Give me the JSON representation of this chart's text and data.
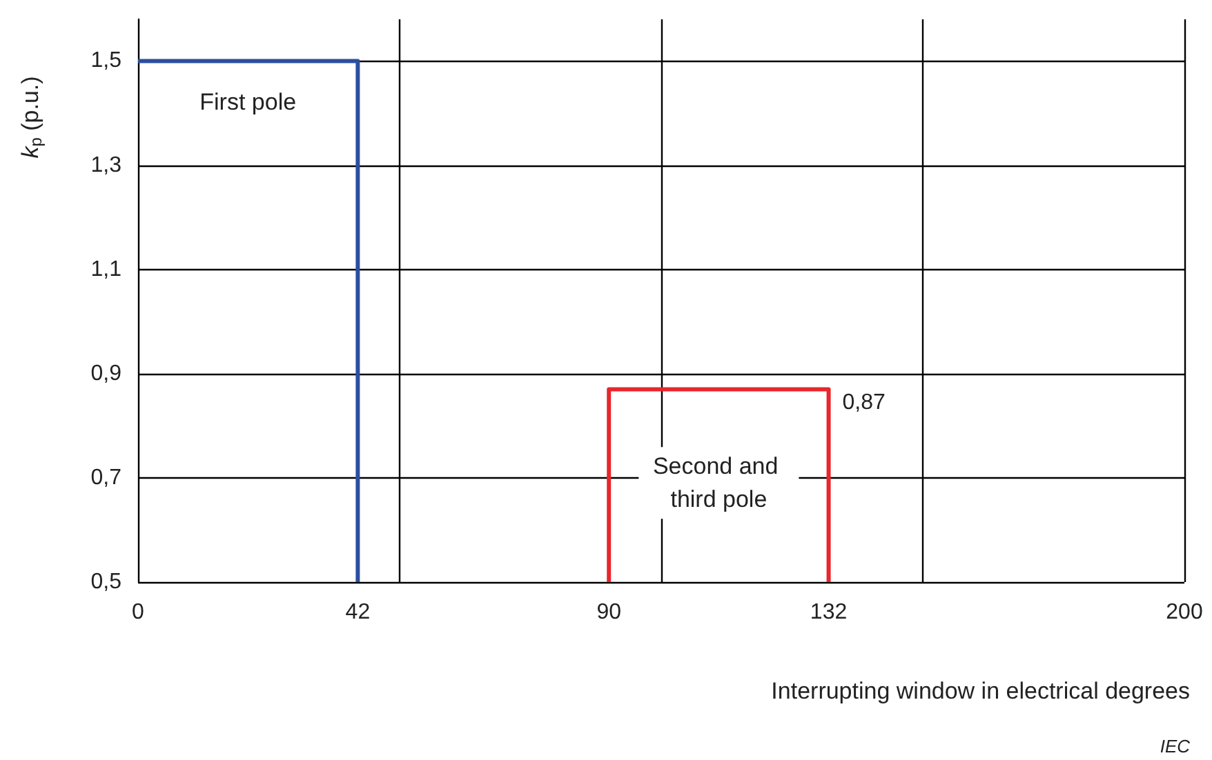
{
  "chart_data": {
    "type": "line",
    "xlabel": "Interrupting window in electrical degrees",
    "ylabel": "k$_{p}$ (p.u.)",
    "series": [
      {
        "name": "First pole",
        "color": "#2b4ea0",
        "x": [
          0,
          42,
          42
        ],
        "values": [
          1.5,
          1.5,
          0.5
        ]
      },
      {
        "name": "Second and third pole",
        "color": "#e8262b",
        "x": [
          90,
          90,
          132,
          132
        ],
        "values": [
          0.5,
          0.87,
          0.87,
          0.5
        ]
      }
    ],
    "xlim": [
      0,
      200
    ],
    "xticks": [
      0,
      42,
      {
        "value": 50,
        "label": null
      },
      90,
      {
        "value": 100,
        "label": null
      },
      132,
      {
        "value": 150,
        "label": null
      },
      200
    ],
    "ylim": [
      0.5,
      1.58
    ],
    "yticks": [
      {
        "value": 0.5,
        "label": "0,5"
      },
      {
        "value": 0.7,
        "label": "0,7"
      },
      {
        "value": 0.9,
        "label": "0,9"
      },
      {
        "value": 1.1,
        "label": "1,1"
      },
      {
        "value": 1.3,
        "label": "1,3"
      },
      {
        "value": 1.5,
        "label": "1,5"
      }
    ],
    "annotations": [
      {
        "text": "0,87",
        "x": 132,
        "y": 0.87
      },
      "IEC"
    ],
    "grid": true,
    "legend": false,
    "marker": "none",
    "line_style": "solid"
  }
}
